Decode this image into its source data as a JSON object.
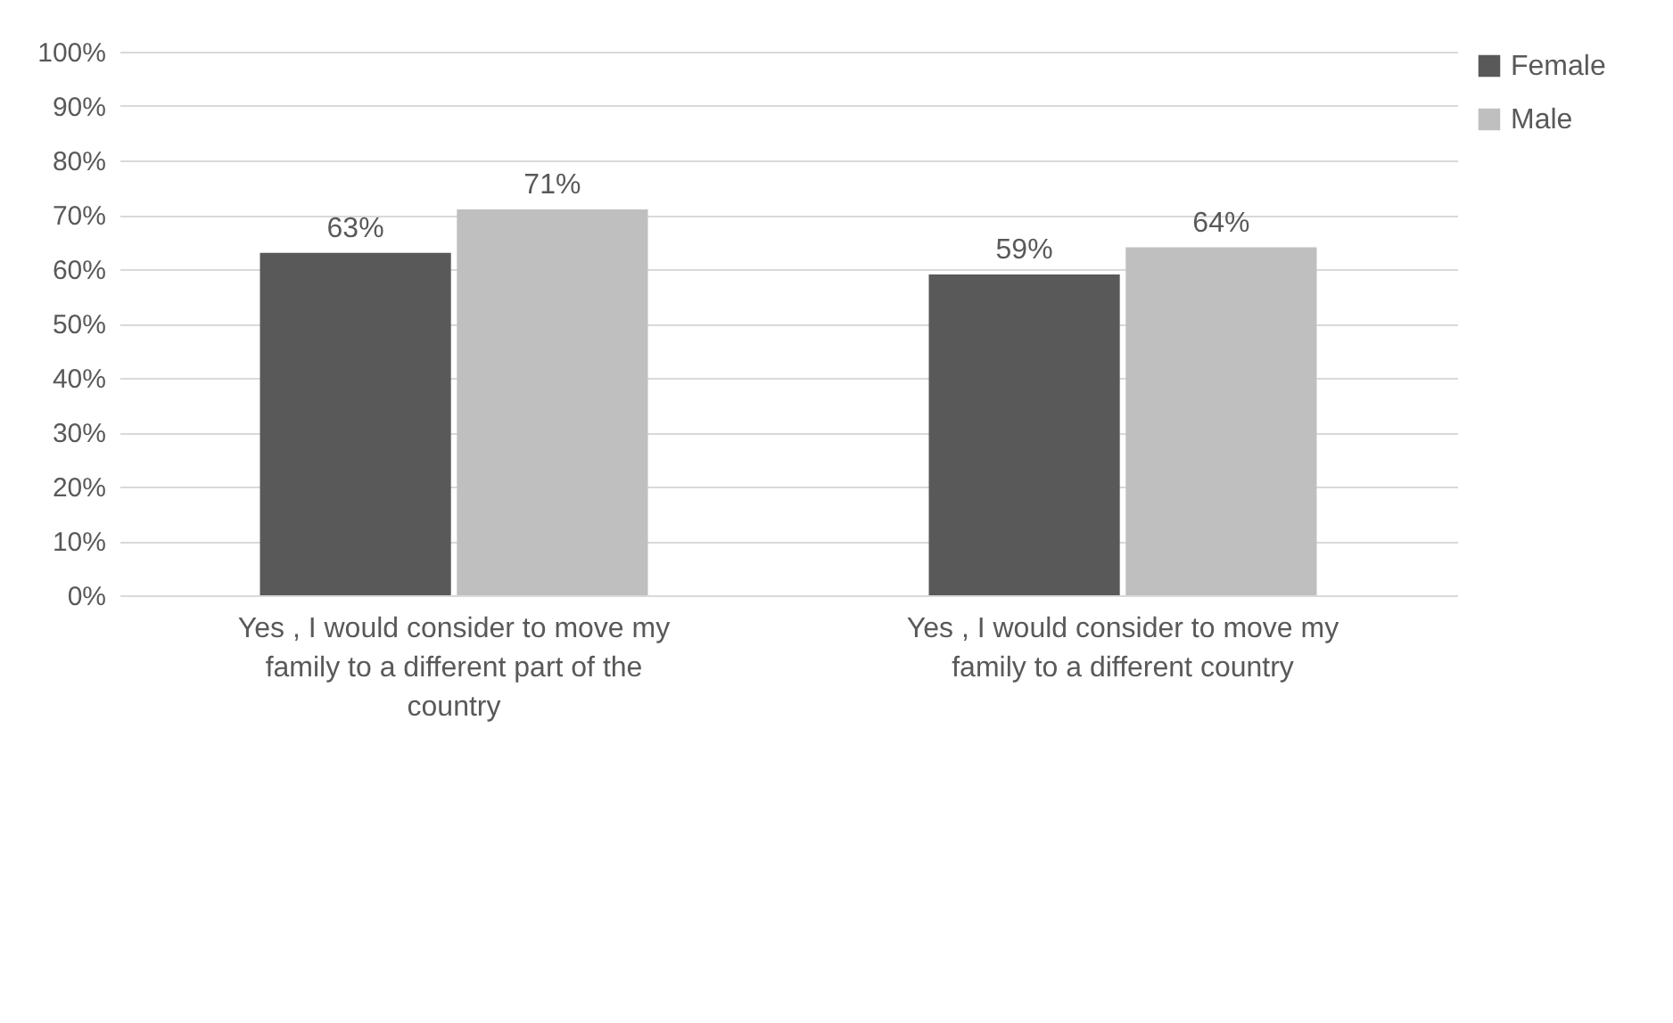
{
  "chart_data": {
    "type": "bar",
    "categories": [
      "Yes , I would consider to move my family to a different part of the country",
      "Yes , I would consider to move my family to a different country"
    ],
    "series": [
      {
        "name": "Female",
        "color": "#595959",
        "values": [
          63,
          59
        ],
        "value_labels": [
          "63%",
          "59%"
        ]
      },
      {
        "name": "Male",
        "color": "#bfbfbf",
        "values": [
          71,
          64
        ],
        "value_labels": [
          "71%",
          "64%"
        ]
      }
    ],
    "ylim": [
      0,
      100
    ],
    "yticks": [
      {
        "value": 0,
        "label": "0%"
      },
      {
        "value": 10,
        "label": "10%"
      },
      {
        "value": 20,
        "label": "20%"
      },
      {
        "value": 30,
        "label": "30%"
      },
      {
        "value": 40,
        "label": "40%"
      },
      {
        "value": 50,
        "label": "50%"
      },
      {
        "value": 60,
        "label": "60%"
      },
      {
        "value": 70,
        "label": "70%"
      },
      {
        "value": 80,
        "label": "80%"
      },
      {
        "value": 90,
        "label": "90%"
      },
      {
        "value": 100,
        "label": "100%"
      }
    ],
    "grid": "y",
    "legend": "right"
  }
}
